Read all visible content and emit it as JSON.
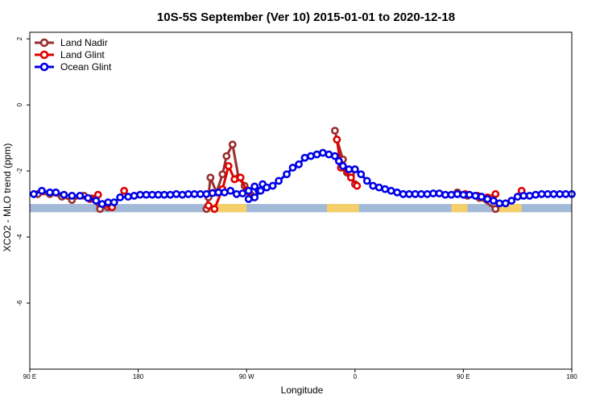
{
  "chart_data": {
    "type": "line",
    "title": "10S-5S September (Ver 10)   2015-01-01 to 2020-12-18",
    "xlabel": "Longitude",
    "ylabel": "XCO2 - MLO trend (ppm)",
    "xlim": [
      -90,
      180
    ],
    "ylim": [
      -8,
      2.2
    ],
    "x_ticks": [
      {
        "value": -90,
        "label": "90 E"
      },
      {
        "value": -36,
        "label": "180"
      },
      {
        "value": 18,
        "label": "90 W"
      },
      {
        "value": 72,
        "label": "0"
      },
      {
        "value": 126,
        "label": "90 E"
      },
      {
        "value": 180,
        "label": "180"
      }
    ],
    "y_ticks": [
      {
        "value": 2,
        "label": "2"
      },
      {
        "value": 0,
        "label": "0"
      },
      {
        "value": -2,
        "label": "-2"
      },
      {
        "value": -4,
        "label": "-4"
      },
      {
        "value": -6,
        "label": "-6"
      }
    ],
    "legend": {
      "position": "top-left"
    },
    "series": [
      {
        "name": "Land Nadir",
        "color": "#9b2d2d",
        "segments": [
          [
            [
              -86,
              -2.7
            ],
            [
              -80,
              -2.7
            ],
            [
              -74,
              -2.78
            ],
            [
              -69,
              -2.88
            ],
            [
              -63,
              -2.75
            ],
            [
              -59,
              -2.83
            ],
            [
              -55,
              -3.15
            ],
            [
              -51,
              -3.1
            ]
          ],
          [
            [
              -2,
              -3.15
            ],
            [
              -1,
              -2.8
            ],
            [
              0,
              -2.2
            ],
            [
              3,
              -2.65
            ],
            [
              6,
              -2.1
            ],
            [
              8,
              -1.55
            ],
            [
              11,
              -1.2
            ],
            [
              14,
              -2.2
            ],
            [
              17,
              -2.45
            ],
            [
              20,
              -2.72
            ]
          ],
          [
            [
              62,
              -0.78
            ],
            [
              63,
              -1.05
            ],
            [
              66,
              -1.65
            ],
            [
              68,
              -2.05
            ],
            [
              70,
              -2.1
            ],
            [
              72,
              -2.4
            ]
          ],
          [
            [
              123,
              -2.65
            ],
            [
              128,
              -2.75
            ],
            [
              134,
              -2.82
            ],
            [
              142,
              -3.15
            ]
          ]
        ]
      },
      {
        "name": "Land Glint",
        "color": "#e00000",
        "segments": [
          [
            [
              -60,
              -2.85
            ],
            [
              -56,
              -2.72
            ]
          ],
          [
            [
              -50,
              -3.05
            ],
            [
              -49,
              -3.1
            ],
            [
              -43,
              -2.6
            ]
          ],
          [
            [
              -1,
              -3.05
            ],
            [
              2,
              -3.15
            ],
            [
              6,
              -2.55
            ],
            [
              9,
              -1.85
            ],
            [
              12,
              -2.25
            ],
            [
              15,
              -2.2
            ],
            [
              18,
              -2.6
            ],
            [
              20,
              -2.8
            ]
          ],
          [
            [
              63,
              -1.05
            ],
            [
              65,
              -1.9
            ],
            [
              70,
              -2.2
            ],
            [
              73,
              -2.45
            ]
          ],
          [
            [
              127,
              -2.7
            ],
            [
              133,
              -2.75
            ],
            [
              138,
              -2.8
            ],
            [
              142,
              -2.7
            ]
          ],
          [
            [
              155,
              -2.6
            ]
          ]
        ]
      },
      {
        "name": "Ocean Glint",
        "color": "#0000e8",
        "segments": [
          [
            [
              -88,
              -2.7
            ],
            [
              -84,
              -2.6
            ],
            [
              -80,
              -2.65
            ],
            [
              -77,
              -2.65
            ],
            [
              -73,
              -2.72
            ],
            [
              -69,
              -2.75
            ],
            [
              -65,
              -2.75
            ],
            [
              -61,
              -2.82
            ],
            [
              -57,
              -2.9
            ],
            [
              -54,
              -3.0
            ],
            [
              -51,
              -2.95
            ],
            [
              -48,
              -2.95
            ],
            [
              -45,
              -2.8
            ],
            [
              -41,
              -2.78
            ],
            [
              -38,
              -2.75
            ],
            [
              -35,
              -2.72
            ],
            [
              -32,
              -2.72
            ],
            [
              -29,
              -2.72
            ],
            [
              -26,
              -2.72
            ],
            [
              -23,
              -2.72
            ],
            [
              -20,
              -2.72
            ],
            [
              -17,
              -2.7
            ],
            [
              -14,
              -2.72
            ],
            [
              -11,
              -2.7
            ],
            [
              -8,
              -2.7
            ],
            [
              -5,
              -2.7
            ],
            [
              -2,
              -2.7
            ],
            [
              1,
              -2.67
            ],
            [
              4,
              -2.65
            ],
            [
              7,
              -2.65
            ],
            [
              10,
              -2.6
            ],
            [
              13,
              -2.7
            ],
            [
              16,
              -2.68
            ],
            [
              19,
              -2.6
            ],
            [
              22,
              -2.47
            ],
            [
              24,
              -2.6
            ],
            [
              26,
              -2.4
            ]
          ],
          [
            [
              19,
              -2.85
            ],
            [
              22,
              -2.8
            ],
            [
              25,
              -2.6
            ],
            [
              28,
              -2.5
            ],
            [
              31,
              -2.45
            ],
            [
              34,
              -2.3
            ],
            [
              38,
              -2.1
            ],
            [
              41,
              -1.9
            ],
            [
              44,
              -1.8
            ],
            [
              47,
              -1.6
            ],
            [
              50,
              -1.55
            ],
            [
              53,
              -1.5
            ],
            [
              56,
              -1.45
            ],
            [
              59,
              -1.5
            ],
            [
              62,
              -1.55
            ],
            [
              64,
              -1.7
            ],
            [
              66,
              -1.85
            ],
            [
              69,
              -1.95
            ],
            [
              72,
              -1.95
            ],
            [
              75,
              -2.1
            ],
            [
              78,
              -2.3
            ],
            [
              81,
              -2.45
            ],
            [
              84,
              -2.5
            ],
            [
              87,
              -2.55
            ],
            [
              90,
              -2.6
            ],
            [
              93,
              -2.65
            ],
            [
              96,
              -2.7
            ],
            [
              99,
              -2.7
            ],
            [
              102,
              -2.7
            ],
            [
              105,
              -2.7
            ],
            [
              108,
              -2.7
            ],
            [
              111,
              -2.68
            ],
            [
              114,
              -2.68
            ],
            [
              117,
              -2.72
            ],
            [
              120,
              -2.72
            ],
            [
              123,
              -2.7
            ],
            [
              126,
              -2.72
            ],
            [
              129,
              -2.72
            ],
            [
              132,
              -2.75
            ],
            [
              135,
              -2.78
            ],
            [
              138,
              -2.85
            ],
            [
              141,
              -2.9
            ],
            [
              144,
              -2.98
            ],
            [
              147,
              -2.98
            ],
            [
              150,
              -2.9
            ],
            [
              153,
              -2.78
            ],
            [
              156,
              -2.75
            ],
            [
              159,
              -2.75
            ],
            [
              162,
              -2.72
            ],
            [
              165,
              -2.7
            ],
            [
              168,
              -2.7
            ],
            [
              171,
              -2.7
            ],
            [
              174,
              -2.7
            ],
            [
              177,
              -2.7
            ],
            [
              180,
              -2.7
            ]
          ]
        ]
      }
    ],
    "surface_band": {
      "y_range": [
        -3.25,
        -3.0
      ],
      "ocean_color": "#a3b9d8",
      "land_color": "#f5cf6a",
      "land_ranges": [
        [
          -1,
          18
        ],
        [
          58,
          74
        ],
        [
          120,
          128
        ],
        [
          142,
          155
        ]
      ]
    }
  }
}
